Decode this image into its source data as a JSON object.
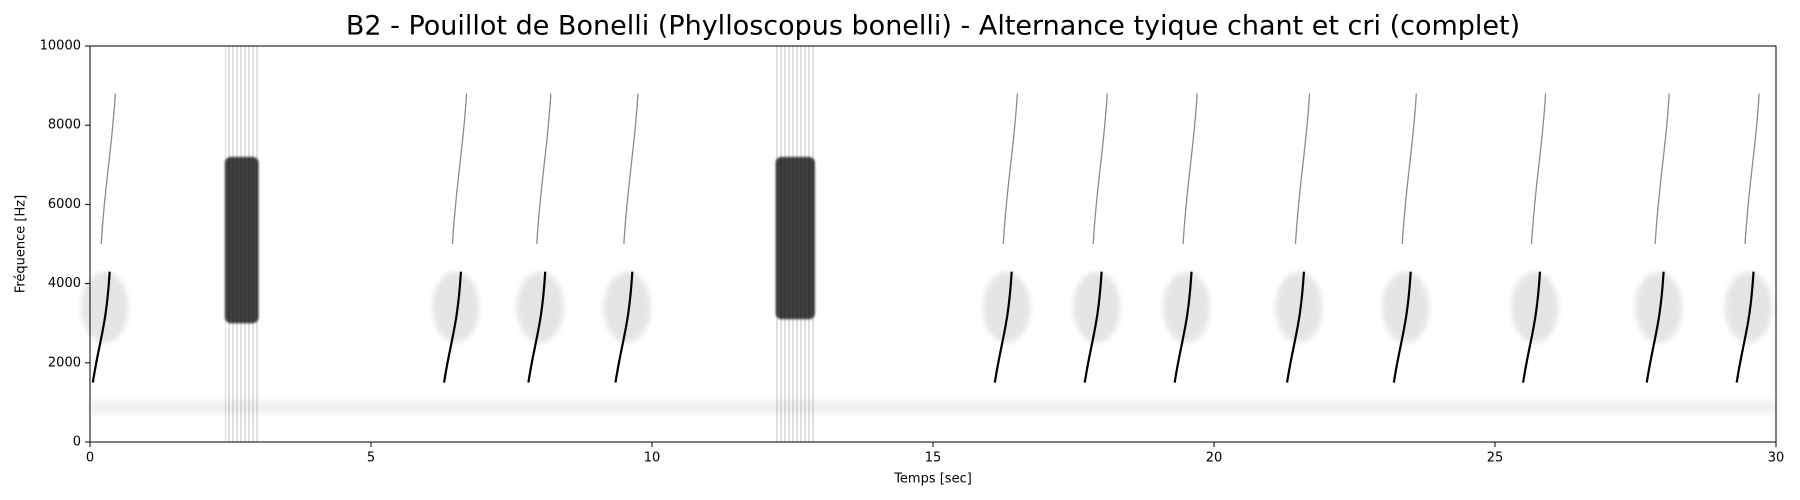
{
  "chart_data": {
    "type": "spectrogram",
    "title": "B2 - Pouillot de Bonelli (Phylloscopus bonelli) - Alternance tyique chant et cri (complet)",
    "xlabel": "Temps [sec]",
    "ylabel": "Fréquence [Hz]",
    "xlim": [
      0,
      30
    ],
    "xticks": [
      0,
      5,
      10,
      15,
      20,
      25,
      30
    ],
    "ylim": [
      0,
      10000
    ],
    "yticks": [
      0,
      2000,
      4000,
      6000,
      8000,
      10000
    ],
    "color": "#000000",
    "chirps": [
      0.35,
      6.6,
      8.1,
      9.65,
      16.4,
      18.0,
      19.6,
      21.6,
      23.5,
      25.8,
      28.0,
      29.6
    ],
    "blocks": [
      {
        "t": [
          2.4,
          3.0
        ],
        "f": [
          3000,
          7200
        ]
      },
      {
        "t": [
          12.2,
          12.9
        ],
        "f": [
          3100,
          7200
        ]
      }
    ]
  }
}
